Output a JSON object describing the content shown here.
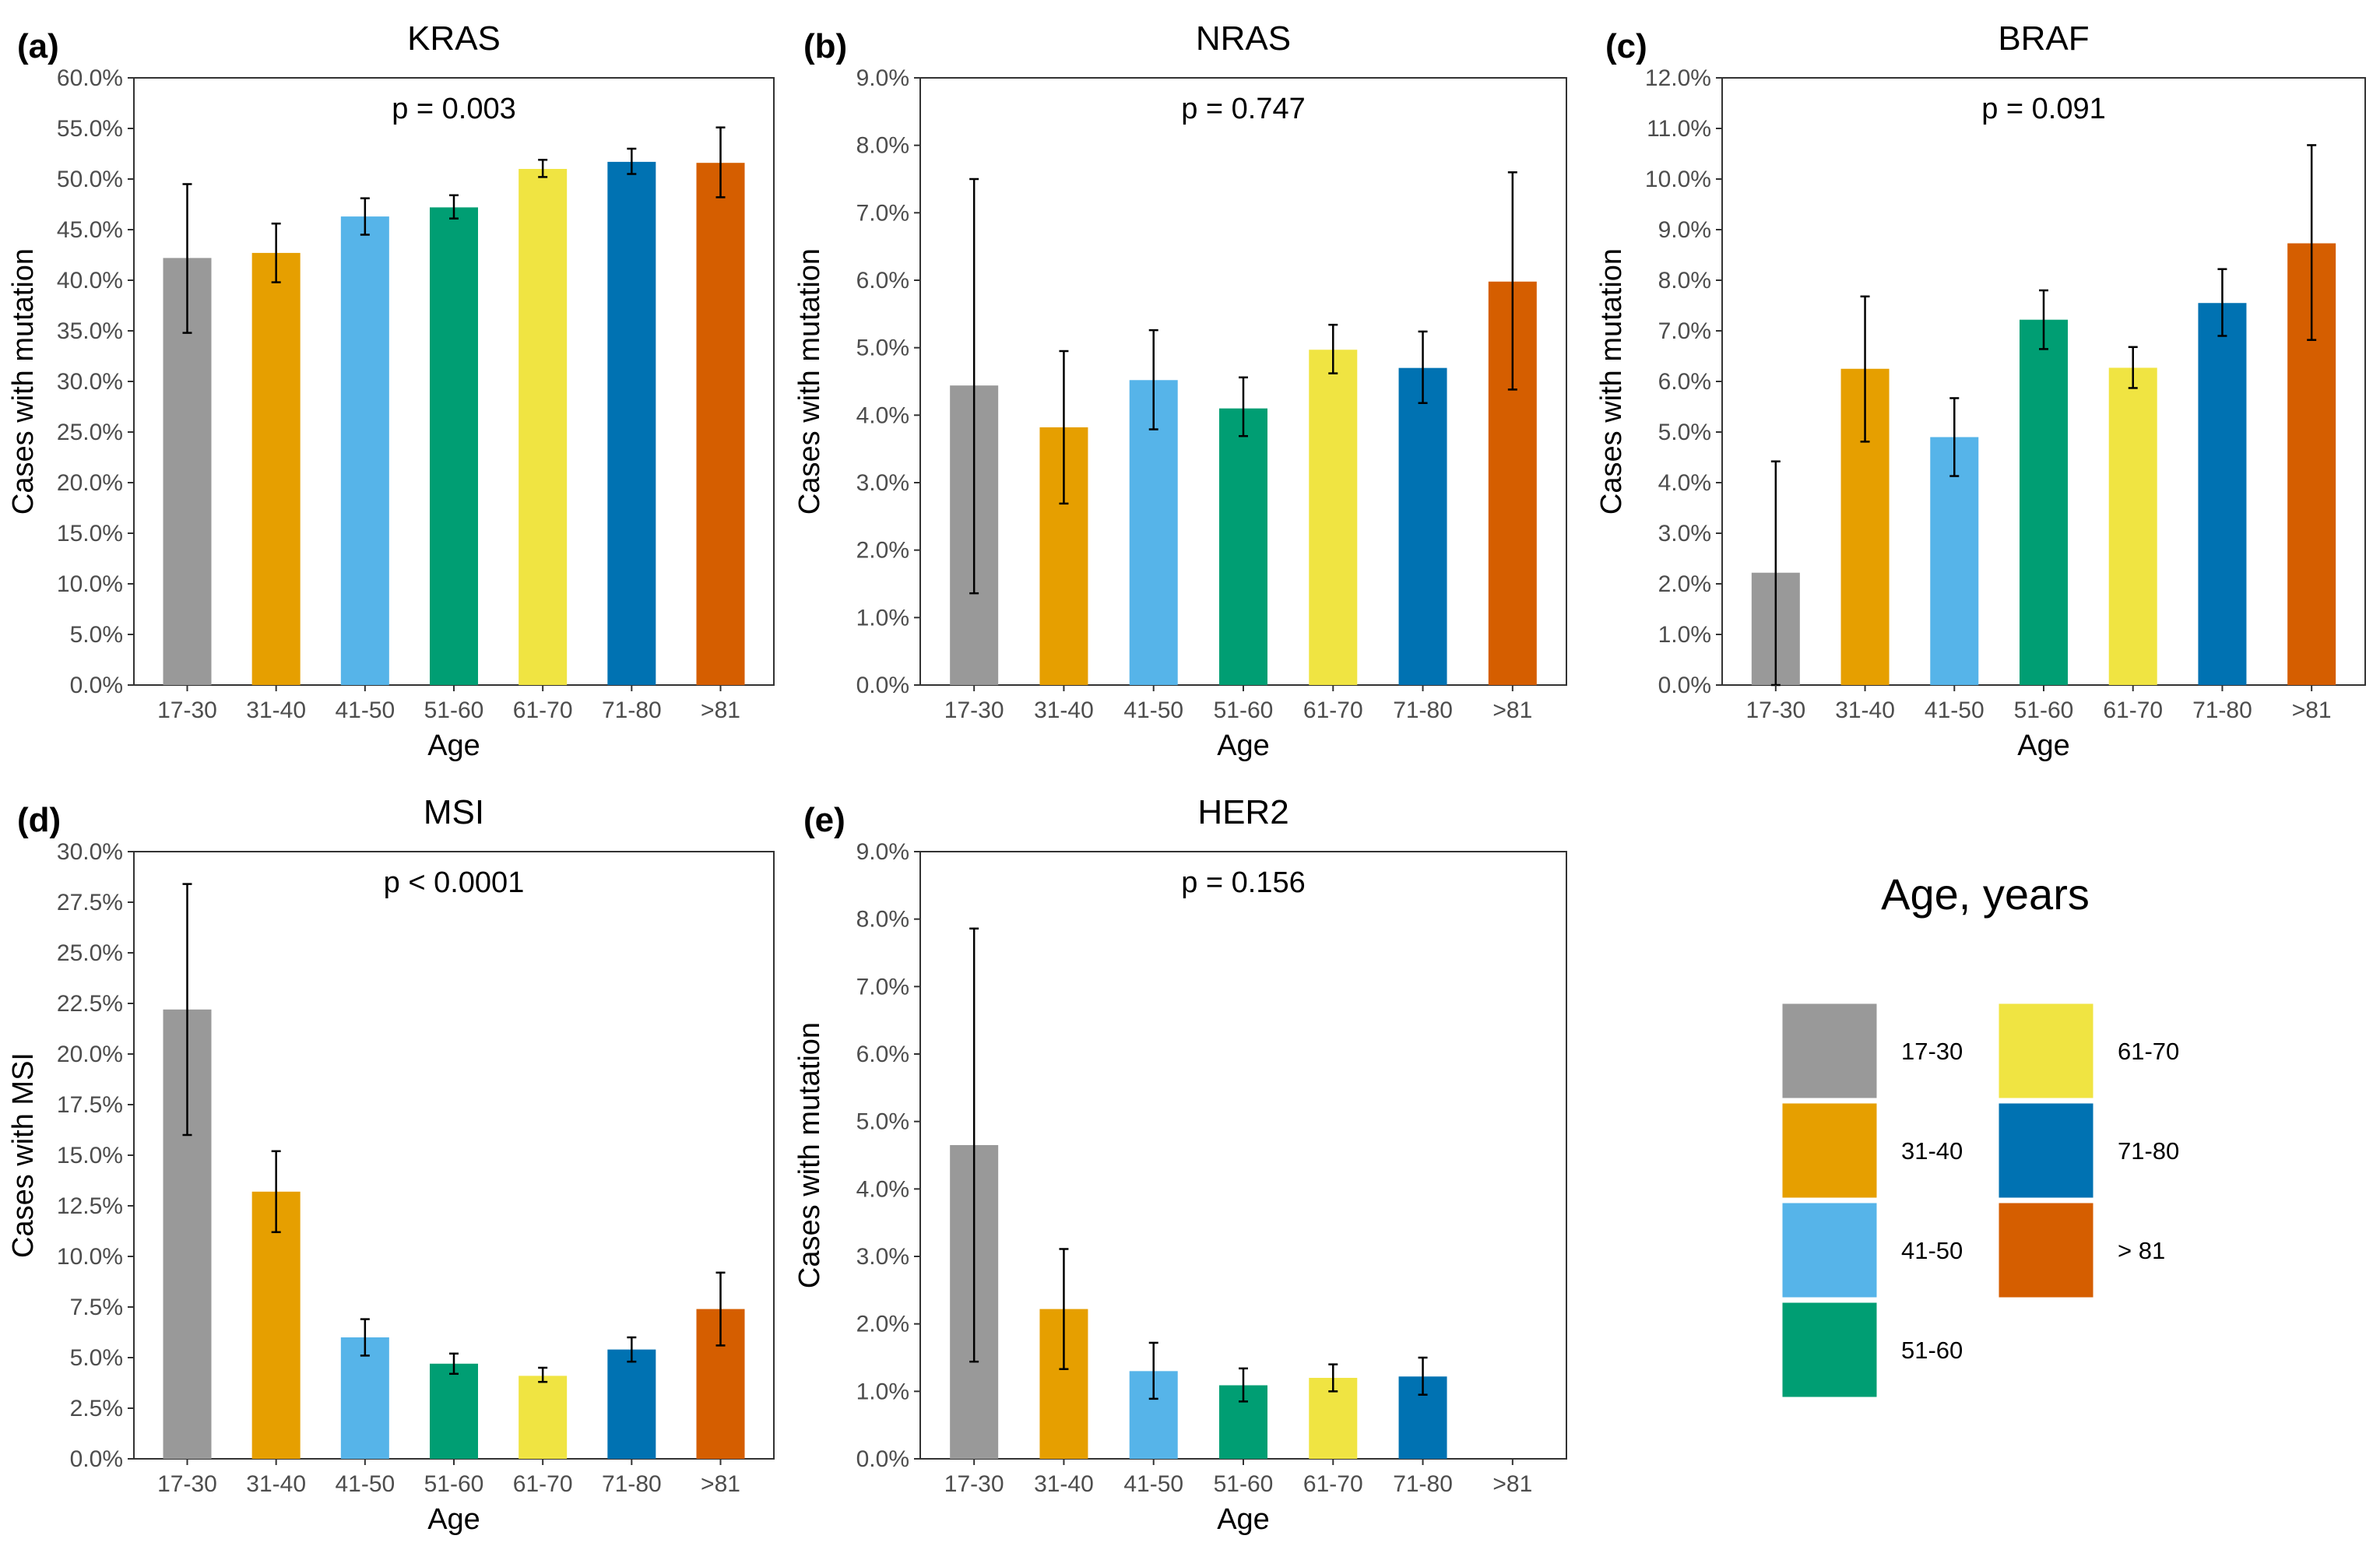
{
  "chart_data": [
    {
      "id": "a",
      "type": "bar",
      "panel_label": "(a)",
      "title": "KRAS",
      "pvalue": "p = 0.003",
      "xlabel": "Age",
      "ylabel": "Cases with mutation",
      "categories": [
        "17-30",
        "31-40",
        "41-50",
        "51-60",
        "61-70",
        "71-80",
        ">81"
      ],
      "values": [
        42.2,
        42.7,
        46.3,
        47.2,
        51.0,
        51.7,
        51.6
      ],
      "err_low": [
        34.8,
        39.8,
        44.5,
        46.1,
        50.2,
        50.5,
        48.2
      ],
      "err_high": [
        49.5,
        45.6,
        48.1,
        48.4,
        51.9,
        53.0,
        55.1
      ],
      "ylim": [
        0,
        60
      ],
      "yticks": [
        "0.0%",
        "5.0%",
        "10.0%",
        "15.0%",
        "20.0%",
        "25.0%",
        "30.0%",
        "35.0%",
        "40.0%",
        "45.0%",
        "50.0%",
        "55.0%",
        "60.0%"
      ]
    },
    {
      "id": "b",
      "type": "bar",
      "panel_label": "(b)",
      "title": "NRAS",
      "pvalue": "p = 0.747",
      "xlabel": "Age",
      "ylabel": "Cases with mutation",
      "categories": [
        "17-30",
        "31-40",
        "41-50",
        "51-60",
        "61-70",
        "71-80",
        ">81"
      ],
      "values": [
        4.44,
        3.82,
        4.52,
        4.1,
        4.97,
        4.7,
        5.98
      ],
      "err_low": [
        1.36,
        2.69,
        3.79,
        3.69,
        4.62,
        4.18,
        4.38
      ],
      "err_high": [
        7.5,
        4.95,
        5.26,
        4.56,
        5.34,
        5.24,
        7.6
      ],
      "ylim": [
        0,
        9
      ],
      "yticks": [
        "0.0%",
        "1.0%",
        "2.0%",
        "3.0%",
        "4.0%",
        "5.0%",
        "6.0%",
        "7.0%",
        "8.0%",
        "9.0%"
      ]
    },
    {
      "id": "c",
      "type": "bar",
      "panel_label": "(c)",
      "title": "BRAF",
      "pvalue": "p = 0.091",
      "xlabel": "Age",
      "ylabel": "Cases with mutation",
      "categories": [
        "17-30",
        "31-40",
        "41-50",
        "51-60",
        "61-70",
        "71-80",
        ">81"
      ],
      "values": [
        2.22,
        6.25,
        4.9,
        7.22,
        6.27,
        7.55,
        8.73
      ],
      "err_low": [
        0.0,
        4.81,
        4.13,
        6.64,
        5.87,
        6.9,
        6.82
      ],
      "err_high": [
        4.42,
        7.68,
        5.67,
        7.8,
        6.68,
        8.22,
        10.67
      ],
      "ylim": [
        0,
        12
      ],
      "yticks": [
        "0.0%",
        "1.0%",
        "2.0%",
        "3.0%",
        "4.0%",
        "5.0%",
        "6.0%",
        "7.0%",
        "8.0%",
        "9.0%",
        "10.0%",
        "11.0%",
        "12.0%"
      ]
    },
    {
      "id": "d",
      "type": "bar",
      "panel_label": "(d)",
      "title": "MSI",
      "pvalue": "p < 0.0001",
      "xlabel": "Age",
      "ylabel": "Cases with MSI",
      "categories": [
        "17-30",
        "31-40",
        "41-50",
        "51-60",
        "61-70",
        "71-80",
        ">81"
      ],
      "values": [
        22.2,
        13.2,
        6.0,
        4.7,
        4.1,
        5.4,
        7.4
      ],
      "err_low": [
        16.0,
        11.2,
        5.1,
        4.2,
        3.8,
        4.8,
        5.6
      ],
      "err_high": [
        28.4,
        15.2,
        6.9,
        5.2,
        4.5,
        6.0,
        9.2
      ],
      "ylim": [
        0,
        30
      ],
      "yticks": [
        "0.0%",
        "2.5%",
        "5.0%",
        "7.5%",
        "10.0%",
        "12.5%",
        "15.0%",
        "17.5%",
        "20.0%",
        "22.5%",
        "25.0%",
        "27.5%",
        "30.0%"
      ]
    },
    {
      "id": "e",
      "type": "bar",
      "panel_label": "(e)",
      "title": "HER2",
      "pvalue": "p = 0.156",
      "xlabel": "Age",
      "ylabel": "Cases with mutation",
      "categories": [
        "17-30",
        "31-40",
        "41-50",
        "51-60",
        "61-70",
        "71-80",
        ">81"
      ],
      "values": [
        4.65,
        2.22,
        1.3,
        1.09,
        1.2,
        1.22,
        0
      ],
      "err_low": [
        1.44,
        1.33,
        0.89,
        0.85,
        1.0,
        0.95,
        null
      ],
      "err_high": [
        7.86,
        3.11,
        1.72,
        1.34,
        1.4,
        1.5,
        null
      ],
      "ylim": [
        0,
        9
      ],
      "yticks": [
        "0.0%",
        "1.0%",
        "2.0%",
        "3.0%",
        "4.0%",
        "5.0%",
        "6.0%",
        "7.0%",
        "8.0%",
        "9.0%"
      ]
    }
  ],
  "colors": [
    "#999999",
    "#E69F00",
    "#56B4E9",
    "#009E73",
    "#F0E442",
    "#0072B2",
    "#D55E00"
  ],
  "legend": {
    "title": "Age, years",
    "items": [
      "17-30",
      "31-40",
      "41-50",
      "51-60",
      "61-70",
      "71-80",
      "> 81"
    ]
  }
}
